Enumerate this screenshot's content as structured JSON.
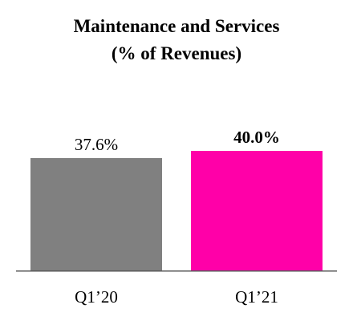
{
  "chart_data": {
    "type": "bar",
    "title": [
      "Maintenance and Services",
      "(% of Revenues)"
    ],
    "categories": [
      "Q1’20",
      "Q1’21"
    ],
    "values": [
      37.6,
      40.0
    ],
    "data_labels": [
      "37.6%",
      "40.0%"
    ],
    "data_label_bold": [
      false,
      true
    ],
    "colors": [
      "#808080",
      "#FF00A8"
    ],
    "axis_color": "#595959",
    "ylim": [
      0,
      40.0
    ],
    "grid": false,
    "legend": "none",
    "xlabel": "",
    "ylabel": ""
  }
}
